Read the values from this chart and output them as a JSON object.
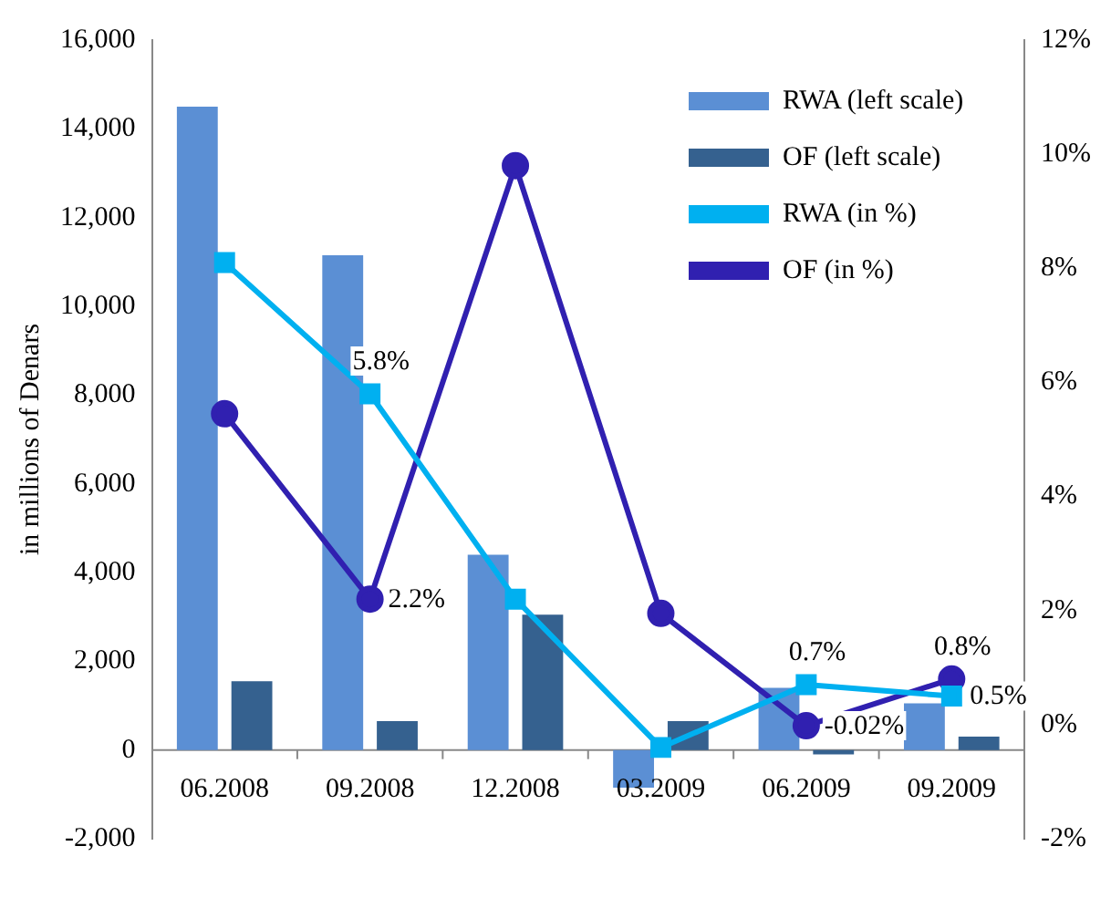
{
  "chart_data": {
    "type": "bar",
    "ylabel": "in millions of Denars",
    "categories": [
      "06.2008",
      "09.2008",
      "12.2008",
      "03.2009",
      "06.2009",
      "09.2009"
    ],
    "series": [
      {
        "name": "RWA (left scale)",
        "color": "#5b8fd4",
        "values": [
          14500,
          11150,
          4400,
          -850,
          1400,
          1050
        ]
      },
      {
        "name": "OF (left scale)",
        "color": "#35618f",
        "values": [
          1550,
          650,
          3050,
          650,
          -100,
          300
        ]
      },
      {
        "name": "RWA (in %)",
        "type": "line",
        "axis": "y2",
        "marker": "square",
        "color": "#00b0f0",
        "values": [
          8.1,
          5.8,
          2.2,
          -0.4,
          0.7,
          0.5
        ],
        "value_labels": [
          null,
          "5.8%",
          null,
          null,
          "0.7%",
          "0.5%"
        ]
      },
      {
        "name": "OF (in %)",
        "type": "line",
        "axis": "y2",
        "marker": "circle",
        "color": "#3020b0",
        "values": [
          5.45,
          2.2,
          9.8,
          1.95,
          -0.02,
          0.8
        ],
        "value_labels": [
          null,
          "2.2%",
          null,
          null,
          "-0.02%",
          "0.8%"
        ]
      }
    ],
    "ylim": [
      -2000,
      16000
    ],
    "yticks": [
      {
        "value": -2000,
        "label": "-2,000"
      },
      0,
      {
        "value": 2000,
        "label": "2,000"
      },
      {
        "value": 4000,
        "label": "4,000"
      },
      {
        "value": 6000,
        "label": "6,000"
      },
      {
        "value": 8000,
        "label": "8,000"
      },
      {
        "value": 10000,
        "label": "10,000"
      },
      {
        "value": 12000,
        "label": "12,000"
      },
      {
        "value": 14000,
        "label": "14,000"
      },
      {
        "value": 16000,
        "label": "16,000"
      }
    ],
    "y2lim": [
      -2,
      12
    ],
    "y2ticks": [
      {
        "value": -2,
        "label": "-2%"
      },
      {
        "value": 0,
        "label": "0%"
      },
      {
        "value": 2,
        "label": "2%"
      },
      {
        "value": 4,
        "label": "4%"
      },
      {
        "value": 6,
        "label": "6%"
      },
      {
        "value": 8,
        "label": "8%"
      },
      {
        "value": 10,
        "label": "10%"
      },
      {
        "value": 12,
        "label": "12%"
      }
    ],
    "grid": false,
    "legend": "top right"
  }
}
